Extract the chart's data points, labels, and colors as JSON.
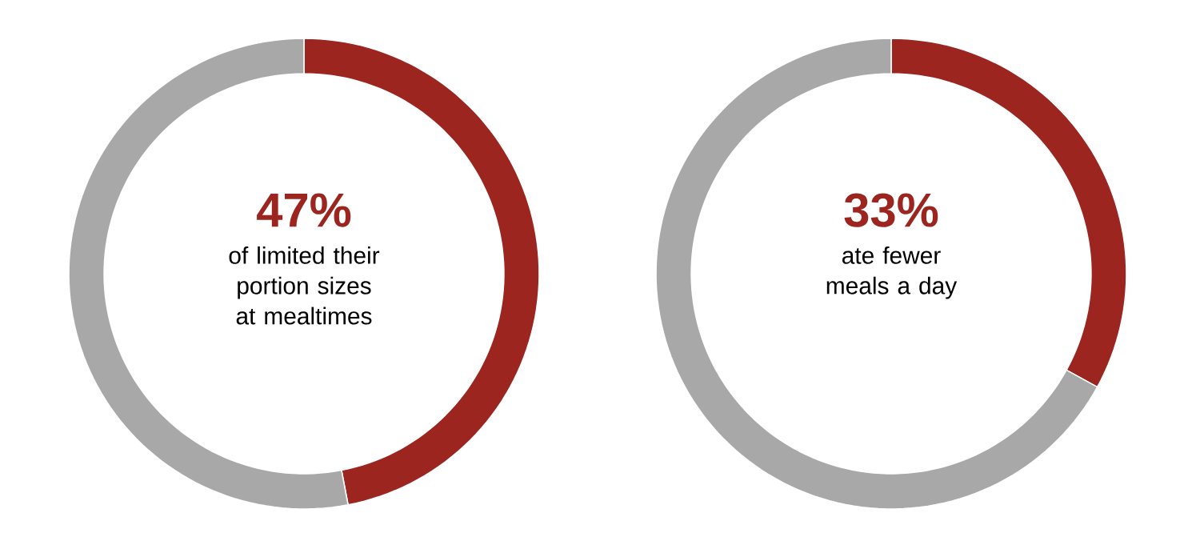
{
  "chart_data": [
    {
      "type": "donut",
      "categories": [
        null,
        null
      ],
      "values": [
        47,
        53
      ],
      "colors": [
        "#9c2520",
        "#a8a8a8"
      ],
      "value_labels": [
        "47%",
        null
      ],
      "annotations": [
        "of limited their portion sizes at mealtimes"
      ]
    },
    {
      "type": "donut",
      "categories": [
        null,
        null
      ],
      "values": [
        33,
        67
      ],
      "colors": [
        "#9c2520",
        "#a8a8a8"
      ],
      "value_labels": [
        "33%",
        null
      ],
      "annotations": [
        "ate fewer meals a day"
      ]
    }
  ]
}
